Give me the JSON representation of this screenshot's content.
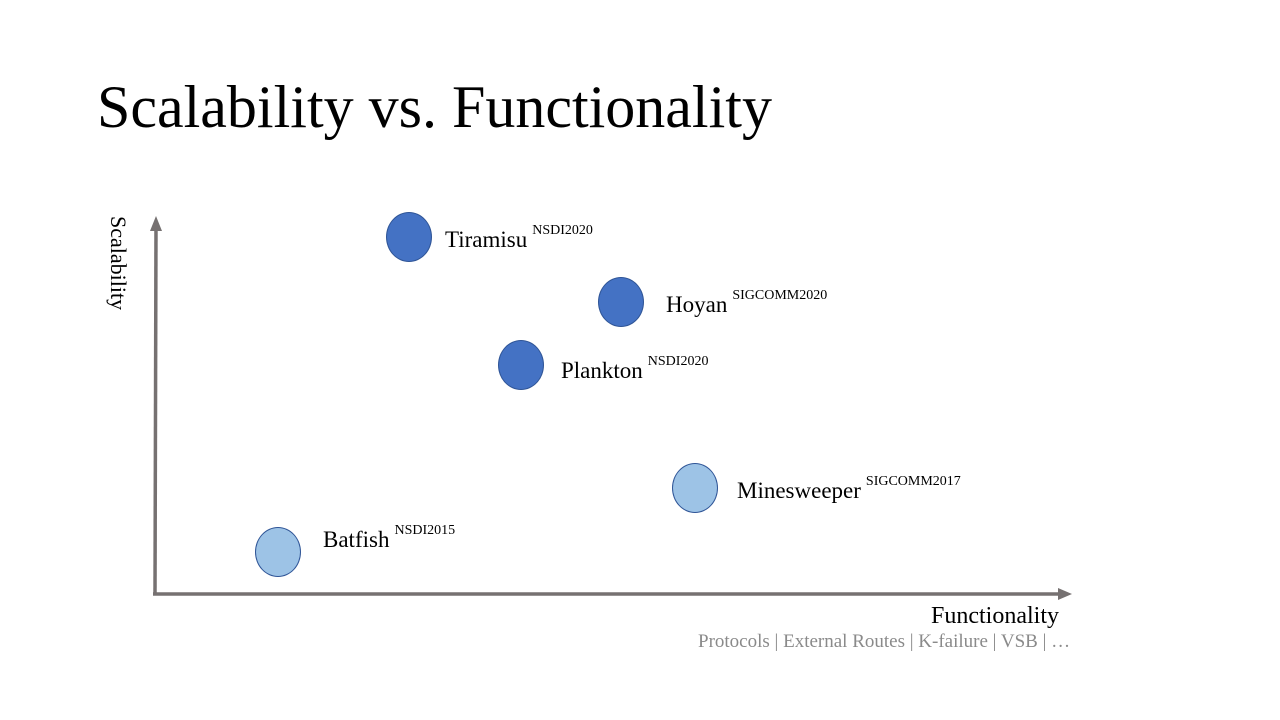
{
  "slide": {
    "title": "Scalability vs. Functionality"
  },
  "axes": {
    "y_label": "Scalability",
    "x_label": "Functionality",
    "x_sublabel": "Protocols | External Routes | K-failure | VSB | …",
    "color": "#767171"
  },
  "systems": [
    {
      "name": "Tiramisu",
      "venue": "NSDI2020",
      "style": "dark"
    },
    {
      "name": "Hoyan",
      "venue": "SIGCOMM2020",
      "style": "dark"
    },
    {
      "name": "Plankton",
      "venue": "NSDI2020",
      "style": "dark"
    },
    {
      "name": "Minesweeper",
      "venue": "SIGCOMM2017",
      "style": "light"
    },
    {
      "name": "Batfish",
      "venue": "NSDI2015",
      "style": "light"
    }
  ],
  "colors": {
    "dark_dot": "#4472c4",
    "light_dot": "#9dc3e6",
    "dot_border": "#2f5597",
    "sublabel": "#8a8a8a"
  }
}
